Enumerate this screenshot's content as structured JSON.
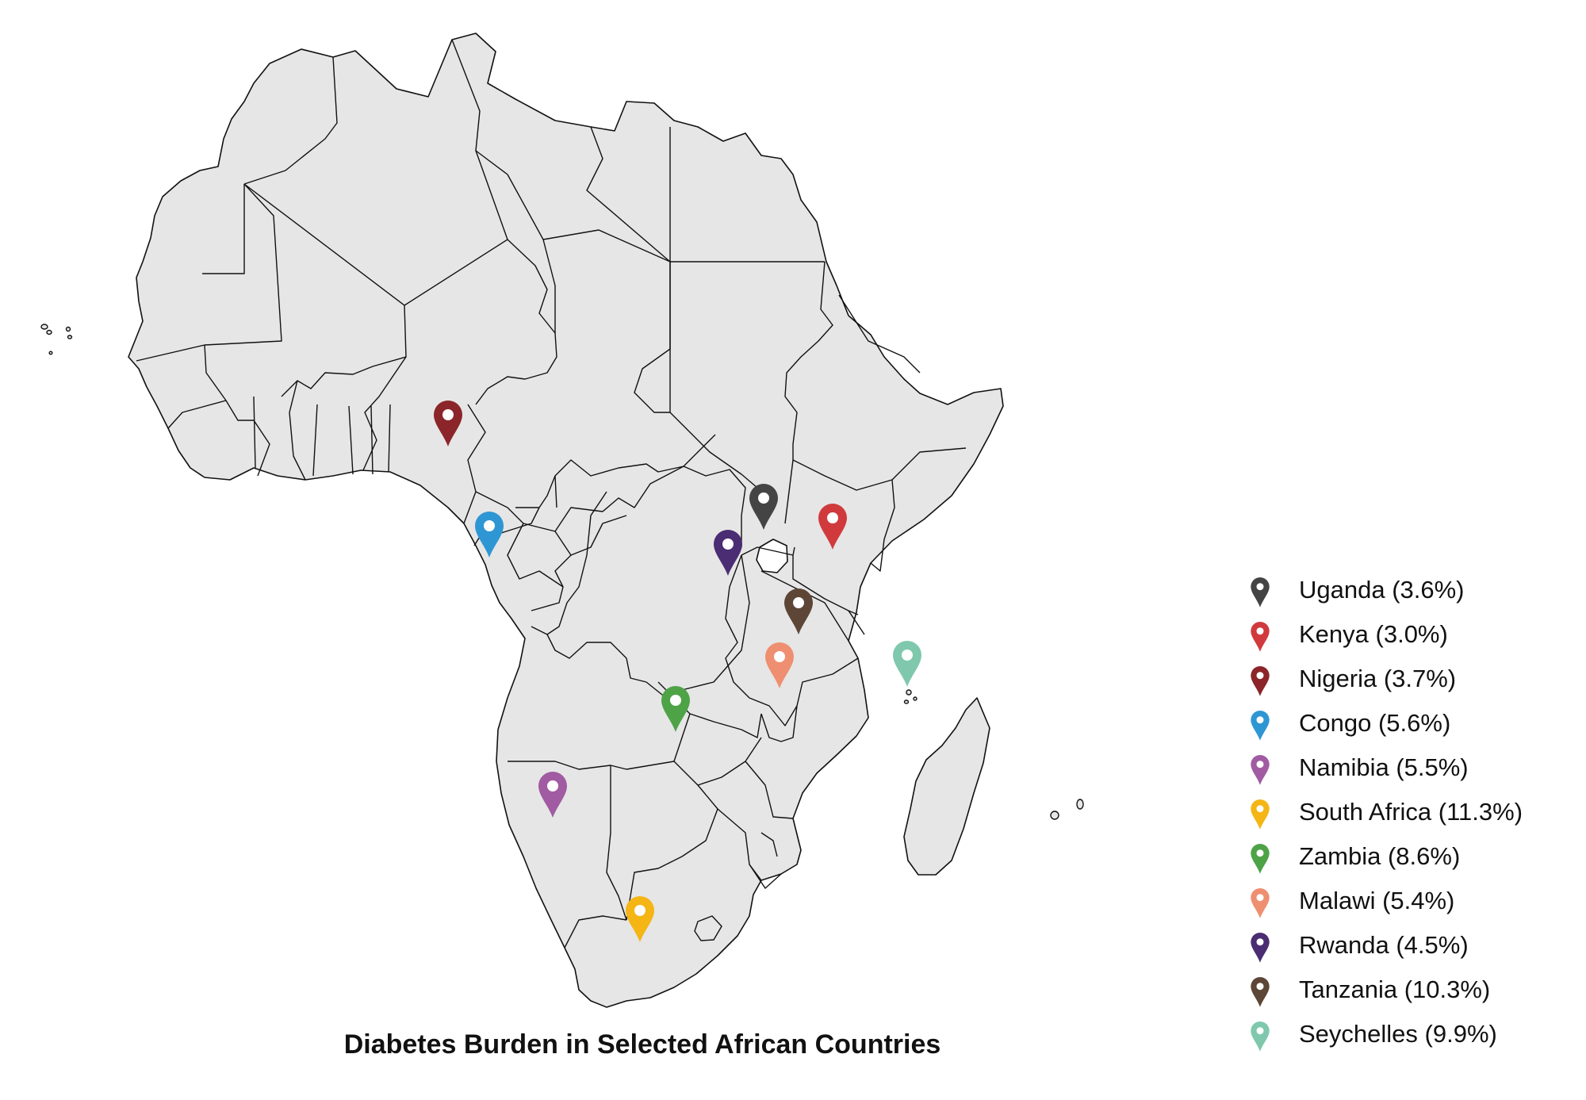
{
  "title": "Diabetes Burden in Selected African Countries",
  "markers": [
    {
      "id": "uganda",
      "label": "Uganda (3.6%)",
      "color": "#444444",
      "icon": "map-pin-icon"
    },
    {
      "id": "kenya",
      "label": "Kenya (3.0%)",
      "color": "#d13a3c",
      "icon": "map-pin-icon"
    },
    {
      "id": "nigeria",
      "label": "Nigeria (3.7%)",
      "color": "#8b2529",
      "icon": "map-pin-icon"
    },
    {
      "id": "congo",
      "label": "Congo (5.6%)",
      "color": "#2f96d4",
      "icon": "map-pin-icon"
    },
    {
      "id": "namibia",
      "label": "Namibia (5.5%)",
      "color": "#a15ba2",
      "icon": "map-pin-icon"
    },
    {
      "id": "south-africa",
      "label": "South Africa (11.3%)",
      "color": "#f4b515",
      "icon": "map-pin-icon"
    },
    {
      "id": "zambia",
      "label": "Zambia (8.6%)",
      "color": "#4ea347",
      "icon": "map-pin-icon"
    },
    {
      "id": "malawi",
      "label": "Malawi (5.4%)",
      "color": "#ef8f71",
      "icon": "map-pin-icon"
    },
    {
      "id": "rwanda",
      "label": "Rwanda (4.5%)",
      "color": "#4a2d72",
      "icon": "map-pin-icon"
    },
    {
      "id": "tanzania",
      "label": "Tanzania (10.3%)",
      "color": "#5d4636",
      "icon": "map-pin-icon"
    },
    {
      "id": "seychelles",
      "label": "Seychelles (9.9%)",
      "color": "#7fc8ad",
      "icon": "map-pin-icon"
    }
  ],
  "colors": {
    "land": "#e6e6e6",
    "border": "#111111",
    "background": "#ffffff"
  }
}
